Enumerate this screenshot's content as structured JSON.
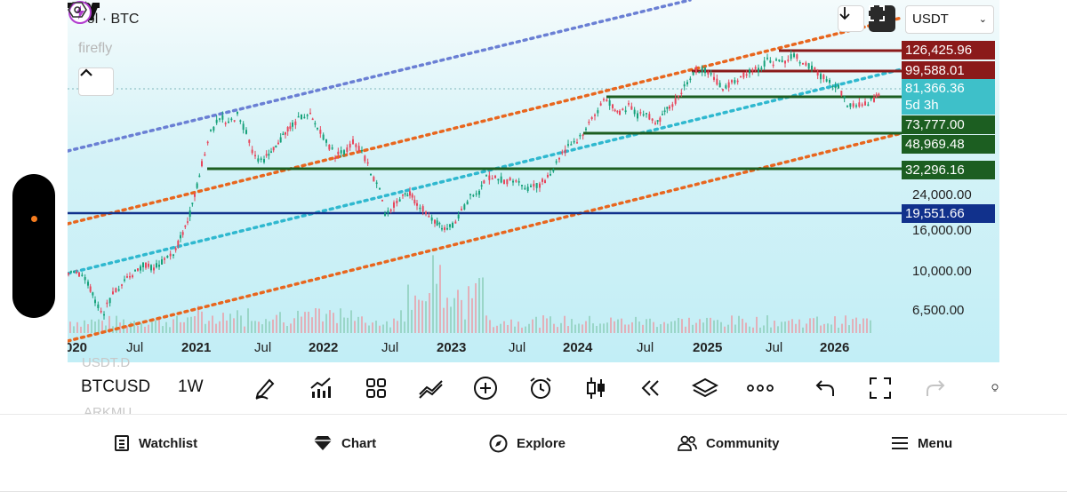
{
  "legend": {
    "title": "Vol · BTC",
    "indicator": "firefly"
  },
  "currency": {
    "selected": "USDT"
  },
  "price_tags": [
    {
      "label": "126,425.96",
      "color": "#8b1a1a"
    },
    {
      "label": "99,588.01",
      "color": "#8b1a1a"
    },
    {
      "label": "81,366.36",
      "color": "#3ec0c9"
    },
    {
      "label": "5d 3h",
      "color": "#3ec0c9"
    },
    {
      "label": "73,777.00",
      "color": "#1c5e21"
    },
    {
      "label": "48,969.48",
      "color": "#1c5e21"
    },
    {
      "label": "32,296.16",
      "color": "#1c5e21"
    },
    {
      "label": "19,551.66",
      "color": "#11318c"
    }
  ],
  "price_labels": [
    "24,000.00",
    "16,000.00",
    "10,000.00",
    "6,500.00"
  ],
  "time_axis": [
    {
      "label": "020",
      "bold": true
    },
    {
      "label": "Jul",
      "bold": false
    },
    {
      "label": "2021",
      "bold": true
    },
    {
      "label": "Jul",
      "bold": false
    },
    {
      "label": "2022",
      "bold": true
    },
    {
      "label": "Jul",
      "bold": false
    },
    {
      "label": "2023",
      "bold": true
    },
    {
      "label": "Jul",
      "bold": false
    },
    {
      "label": "2024",
      "bold": true
    },
    {
      "label": "Jul",
      "bold": false
    },
    {
      "label": "2025",
      "bold": true
    },
    {
      "label": "Jul",
      "bold": false
    },
    {
      "label": "2026",
      "bold": true
    }
  ],
  "toolbar": {
    "symbol": "BTCUSD",
    "interval": "1W",
    "ghost_above": "USDT.D",
    "ghost_below": "ARKMU"
  },
  "bottom_nav": [
    {
      "label": "Watchlist",
      "icon": "watchlist-icon"
    },
    {
      "label": "Chart",
      "icon": "chart-diamond-icon"
    },
    {
      "label": "Explore",
      "icon": "compass-icon"
    },
    {
      "label": "Community",
      "icon": "people-icon"
    },
    {
      "label": "Menu",
      "icon": "hamburger-icon"
    }
  ],
  "colors": {
    "channel_outer": "#6a7fd4",
    "channel_orange": "#e8661e",
    "channel_mid": "#2fb8cf",
    "support_green": "#1c5e21",
    "resistance_red": "#8b1a1a",
    "support_blue": "#11318c",
    "candle_up": "#16a17a",
    "candle_down": "#e8465c"
  }
}
